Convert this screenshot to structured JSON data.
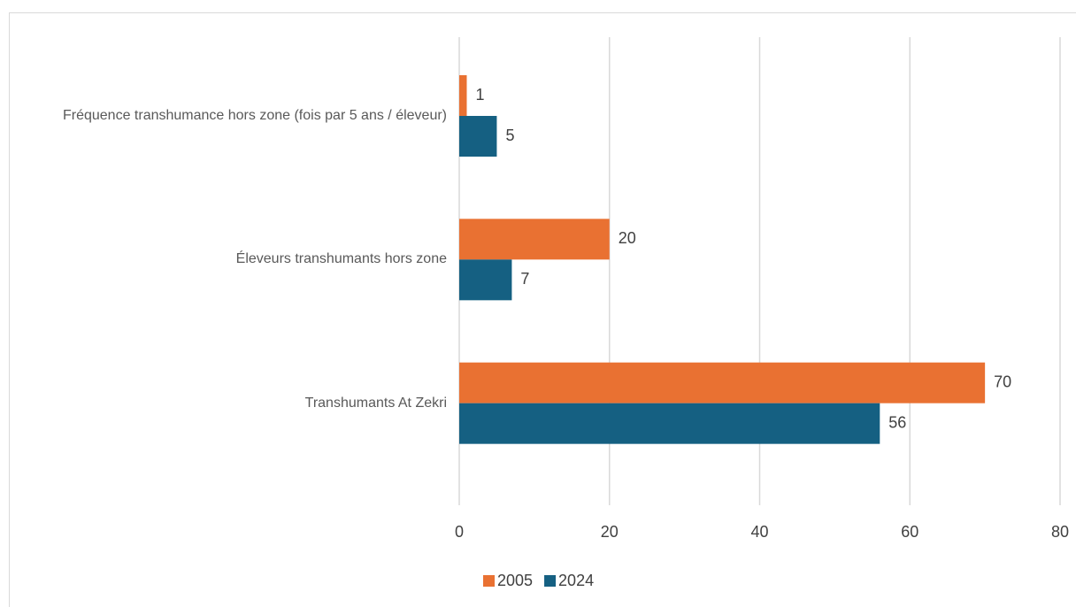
{
  "chart_data": {
    "type": "barh",
    "categories": [
      "Fréquence transhumance hors zone (fois par 5 ans / éleveur)",
      "Éleveurs transhumants hors zone",
      "Transhumants At Zekri"
    ],
    "series": [
      {
        "name": "2005",
        "color": "#E97132",
        "values": [
          1,
          20,
          70
        ]
      },
      {
        "name": "2024",
        "color": "#156082",
        "values": [
          5,
          7,
          56
        ]
      }
    ],
    "xlim": [
      0,
      80
    ],
    "xticks": [
      0,
      20,
      40,
      60,
      80
    ],
    "grid": true,
    "legend": "bottom"
  }
}
